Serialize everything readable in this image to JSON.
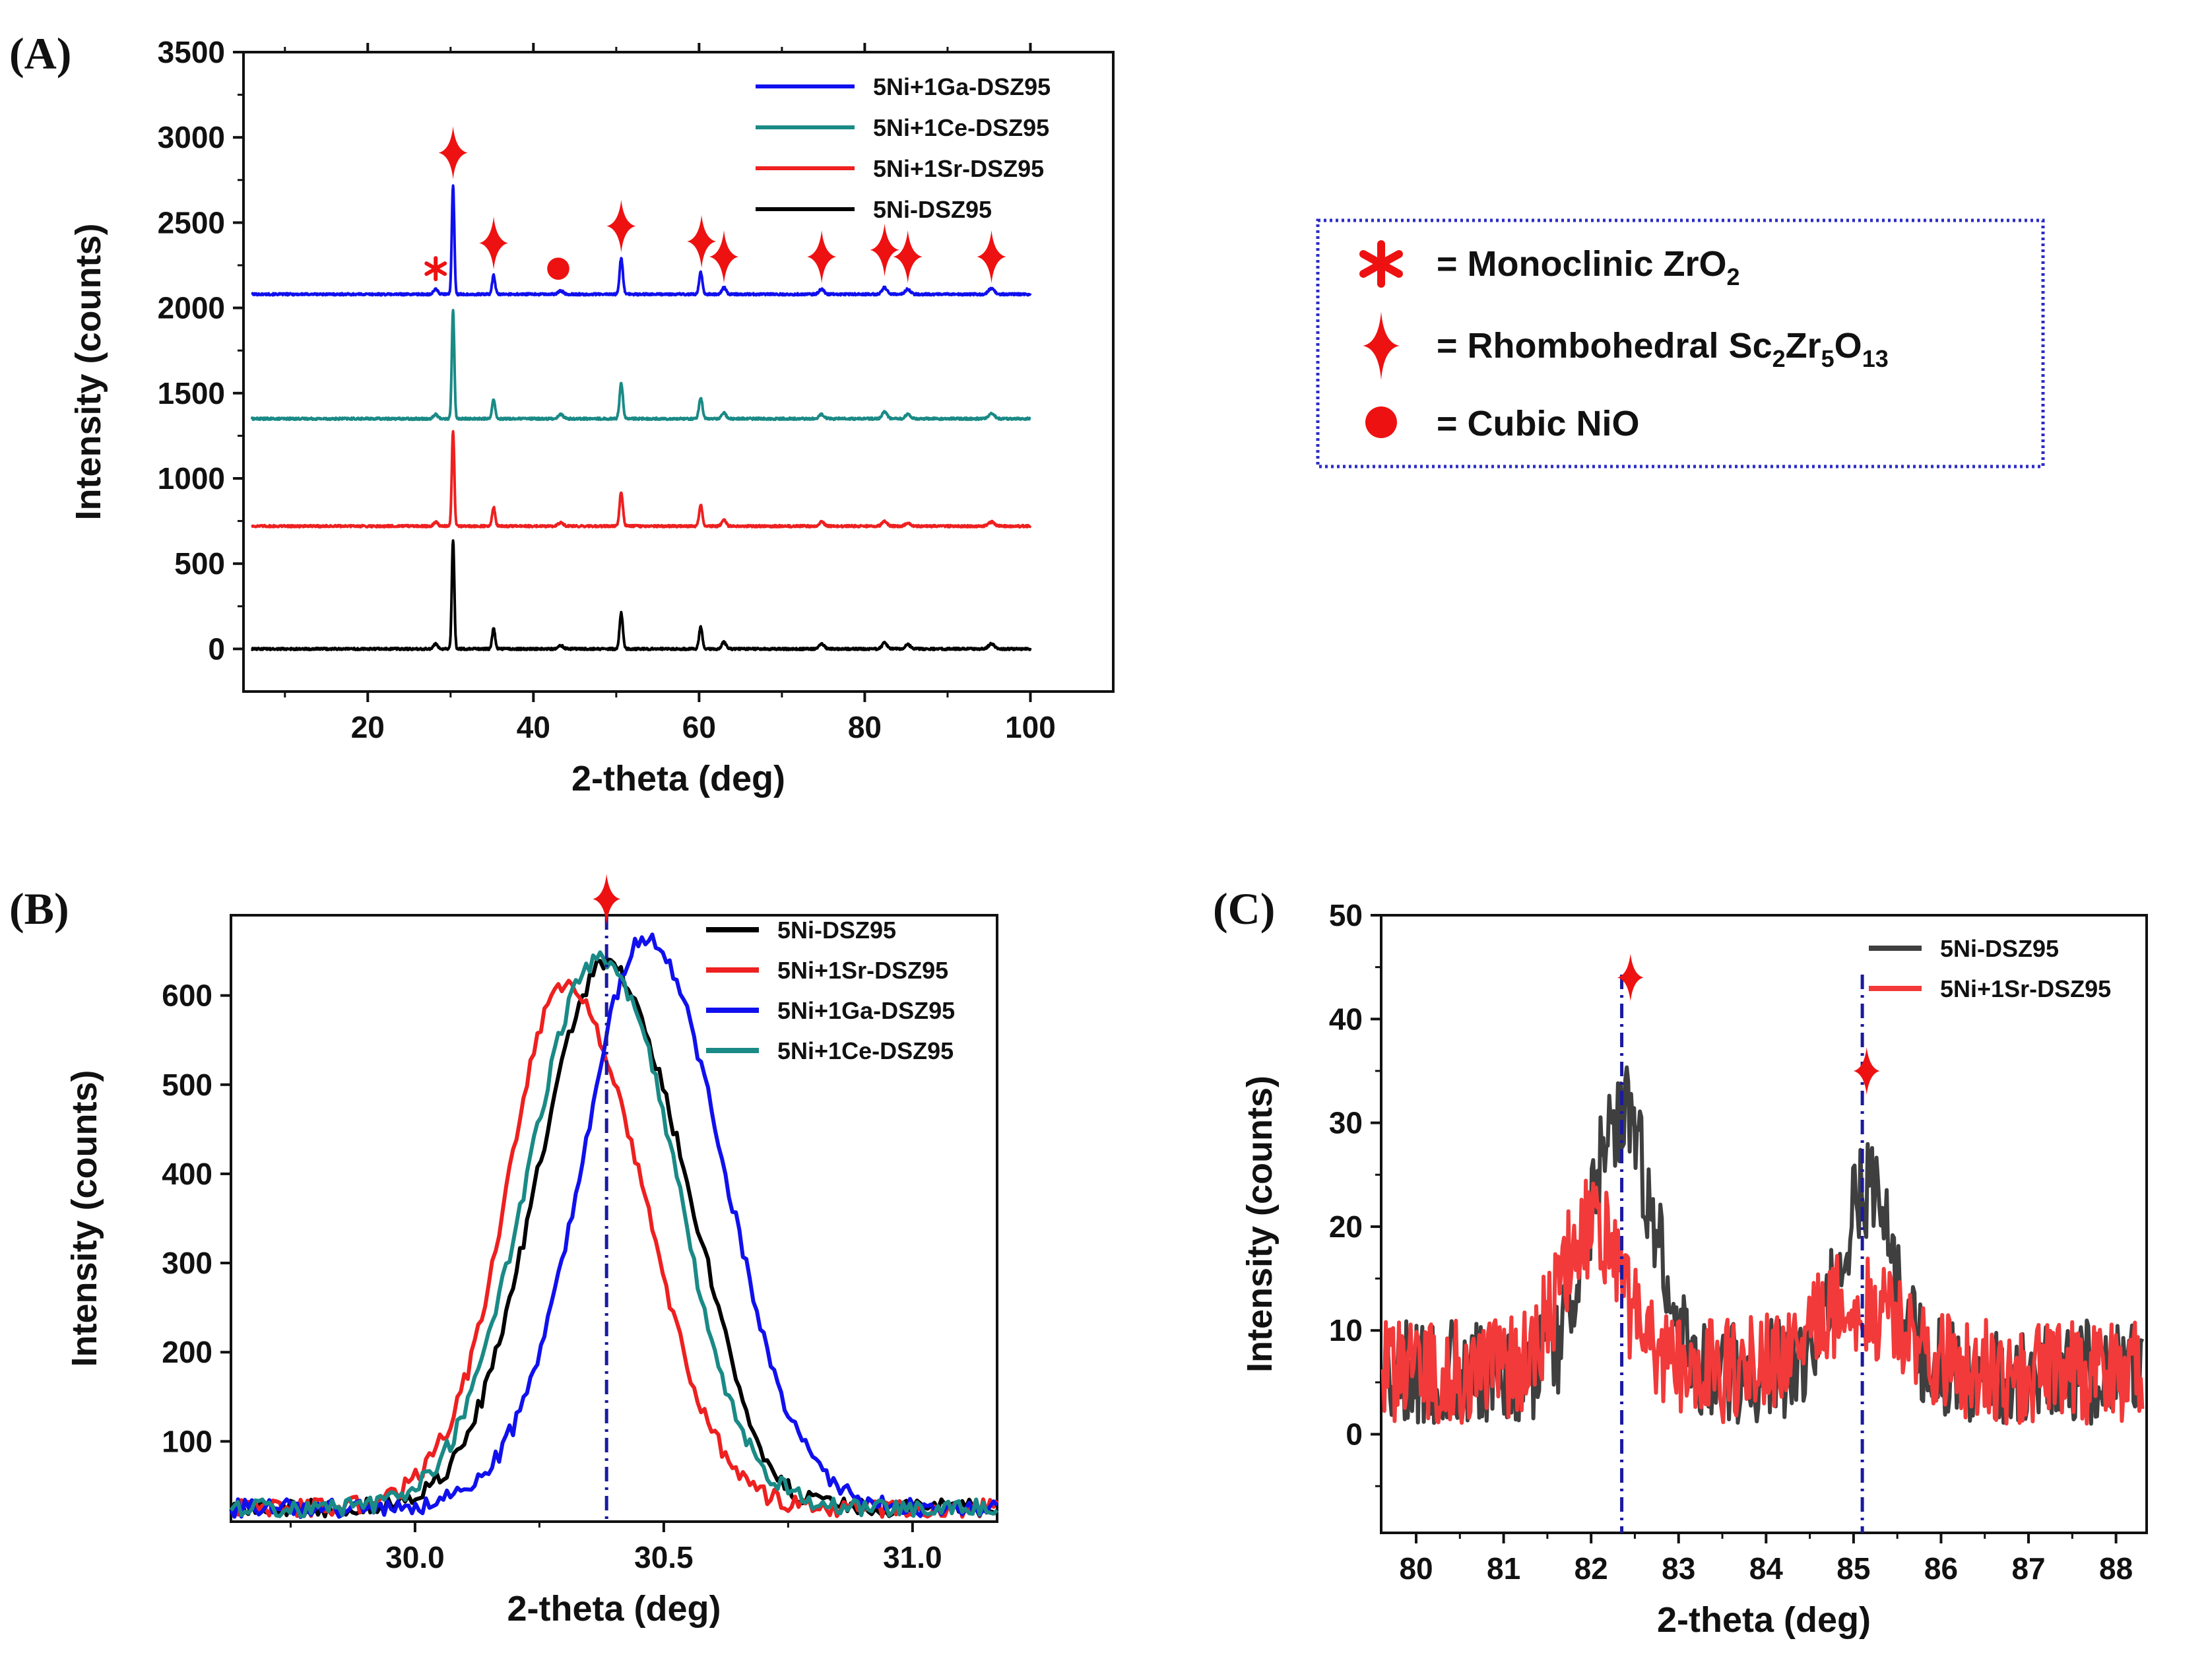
{
  "figure_labels": [
    "(A)",
    "(B)",
    "(C)"
  ],
  "colors": {
    "ga": "#1010ee",
    "ce": "#1a8a86",
    "sr": "#ee2020",
    "ni": "#000000",
    "ni_c": "#3f3f3f",
    "sr_c": "#f23a3a",
    "marker": "#ee1111",
    "guide": "#1a1aa0",
    "key_border": "#2c2cc8"
  },
  "key": {
    "monoclinic": {
      "prefix": "= Monoclinic ZrO",
      "sub": "2"
    },
    "rhombohedral": {
      "prefix": "= Rhombohedral Sc",
      "sub1": "2",
      "mid1": "Zr",
      "sub2": "5",
      "mid2": "O",
      "sub3": "13"
    },
    "cubic": {
      "prefix": "= Cubic NiO"
    }
  },
  "chart_data": [
    {
      "id": "A",
      "type": "line",
      "xlabel": "2-theta (deg)",
      "ylabel": "Intensity (counts)",
      "xlim": [
        5,
        110
      ],
      "ylim": [
        -250,
        3500
      ],
      "xticks": [
        20,
        40,
        60,
        80,
        100
      ],
      "yticks": [
        0,
        500,
        1000,
        1500,
        2000,
        2500,
        3000,
        3500
      ],
      "xstart": 6,
      "xend": 100,
      "series": [
        {
          "name": "5Ni+1Ga-DSZ95",
          "color": "#1010ee",
          "baseline": 2080,
          "noise": 6,
          "peaks": [
            [
              28.2,
              30,
              0.25
            ],
            [
              30.3,
              640,
              0.15
            ],
            [
              35.2,
              110,
              0.18
            ],
            [
              43.3,
              20,
              0.3
            ],
            [
              50.6,
              210,
              0.2
            ],
            [
              60.2,
              130,
              0.2
            ],
            [
              63.0,
              40,
              0.25
            ],
            [
              74.8,
              30,
              0.3
            ],
            [
              82.4,
              40,
              0.3
            ],
            [
              85.2,
              30,
              0.3
            ],
            [
              95.3,
              35,
              0.35
            ]
          ]
        },
        {
          "name": "5Ni+1Ce-DSZ95",
          "color": "#1a8a86",
          "baseline": 1350,
          "noise": 6,
          "peaks": [
            [
              28.2,
              25,
              0.25
            ],
            [
              30.3,
              640,
              0.15
            ],
            [
              35.2,
              115,
              0.18
            ],
            [
              43.3,
              25,
              0.3
            ],
            [
              50.6,
              210,
              0.2
            ],
            [
              60.2,
              125,
              0.2
            ],
            [
              63.0,
              35,
              0.25
            ],
            [
              74.8,
              25,
              0.3
            ],
            [
              82.4,
              40,
              0.3
            ],
            [
              85.2,
              25,
              0.3
            ],
            [
              95.3,
              30,
              0.35
            ]
          ]
        },
        {
          "name": "5Ni+1Sr-DSZ95",
          "color": "#ee2020",
          "baseline": 720,
          "noise": 6,
          "peaks": [
            [
              28.2,
              25,
              0.25
            ],
            [
              30.3,
              560,
              0.15
            ],
            [
              35.2,
              110,
              0.18
            ],
            [
              43.3,
              20,
              0.3
            ],
            [
              50.6,
              200,
              0.2
            ],
            [
              60.2,
              125,
              0.2
            ],
            [
              63.0,
              35,
              0.25
            ],
            [
              74.8,
              25,
              0.3
            ],
            [
              82.4,
              30,
              0.3
            ],
            [
              85.2,
              20,
              0.3
            ],
            [
              95.3,
              25,
              0.35
            ]
          ]
        },
        {
          "name": "5Ni-DSZ95",
          "color": "#000000",
          "baseline": 0,
          "noise": 6,
          "peaks": [
            [
              28.2,
              30,
              0.25
            ],
            [
              30.3,
              640,
              0.15
            ],
            [
              35.2,
              120,
              0.18
            ],
            [
              43.3,
              20,
              0.3
            ],
            [
              50.6,
              210,
              0.2
            ],
            [
              60.2,
              130,
              0.2
            ],
            [
              63.0,
              40,
              0.25
            ],
            [
              74.8,
              30,
              0.3
            ],
            [
              82.4,
              35,
              0.3
            ],
            [
              85.2,
              25,
              0.3
            ],
            [
              95.3,
              30,
              0.35
            ]
          ]
        }
      ],
      "legend": [
        "5Ni+1Ga-DSZ95",
        "5Ni+1Ce-DSZ95",
        "5Ni+1Sr-DSZ95",
        "5Ni-DSZ95"
      ],
      "markers": [
        {
          "type": "asterisk",
          "x": 28.2,
          "y": 2230
        },
        {
          "type": "star",
          "x": 30.3,
          "y": 2910
        },
        {
          "type": "star",
          "x": 35.2,
          "y": 2380
        },
        {
          "type": "dot",
          "x": 43.0,
          "y": 2230
        },
        {
          "type": "star",
          "x": 50.6,
          "y": 2480
        },
        {
          "type": "star",
          "x": 60.3,
          "y": 2390
        },
        {
          "type": "star",
          "x": 63.0,
          "y": 2300
        },
        {
          "type": "star",
          "x": 74.8,
          "y": 2300
        },
        {
          "type": "star",
          "x": 82.4,
          "y": 2340
        },
        {
          "type": "star",
          "x": 85.2,
          "y": 2300
        },
        {
          "type": "star",
          "x": 95.3,
          "y": 2300
        }
      ]
    },
    {
      "id": "B",
      "type": "line",
      "xlabel": "2-theta (deg)",
      "ylabel": "Intensity (counts)",
      "xlim": [
        29.63,
        31.17
      ],
      "ylim": [
        10,
        690
      ],
      "xticks": [
        30.0,
        30.5,
        31.0
      ],
      "xtick_labels": [
        "30.0",
        "30.5",
        "31.0"
      ],
      "yticks": [
        100,
        200,
        300,
        400,
        500,
        600
      ],
      "series": [
        {
          "name": "5Ni-DSZ95",
          "color": "#000000",
          "base": 25,
          "peaks": [
            [
              30.385,
              610,
              0.14
            ]
          ],
          "shoulder": [
            30.58,
            60,
            0.07
          ],
          "noise": 10
        },
        {
          "name": "5Ni+1Sr-DSZ95",
          "color": "#ee2020",
          "base": 25,
          "peaks": [
            [
              30.33,
              540,
              0.14
            ]
          ],
          "shoulder": [
            30.25,
            80,
            0.06
          ],
          "noise": 10
        },
        {
          "name": "5Ni+1Ga-DSZ95",
          "color": "#1010ee",
          "base": 25,
          "peaks": [
            [
              30.48,
              615,
              0.145
            ]
          ],
          "shoulder": [
            30.42,
            40,
            0.05
          ],
          "noise": 10
        },
        {
          "name": "5Ni+1Ce-DSZ95",
          "color": "#1a8a86",
          "base": 25,
          "peaks": [
            [
              30.37,
              615,
              0.145
            ]
          ],
          "shoulder": [
            30.5,
            30,
            0.05
          ],
          "noise": 10
        }
      ],
      "legend": [
        "5Ni-DSZ95",
        "5Ni+1Sr-DSZ95",
        "5Ni+1Ga-DSZ95",
        "5Ni+1Ce-DSZ95"
      ],
      "guide_x": [
        30.385
      ],
      "markers": [
        {
          "type": "star",
          "x": 30.385,
          "y": 680
        }
      ]
    },
    {
      "id": "C",
      "type": "line",
      "xlabel": "2-theta (deg)",
      "ylabel": "Intensity (counts)",
      "xlim": [
        79.6,
        88.35
      ],
      "ylim": [
        -9.5,
        50
      ],
      "xticks": [
        80,
        81,
        82,
        83,
        84,
        85,
        86,
        87,
        88
      ],
      "yticks": [
        0,
        10,
        20,
        30,
        40,
        50
      ],
      "series": [
        {
          "name": "5Ni-DSZ95",
          "color": "#3f3f3f",
          "base": 6,
          "peaks": [
            [
              82.35,
              25,
              0.35
            ],
            [
              85.15,
              17,
              0.3
            ]
          ],
          "noise": 5
        },
        {
          "name": "5Ni+1Sr-DSZ95",
          "color": "#f23a3a",
          "base": 6,
          "peaks": [
            [
              82.0,
              14,
              0.35
            ],
            [
              85.0,
              7,
              0.5
            ]
          ],
          "noise": 5
        }
      ],
      "legend": [
        "5Ni-DSZ95",
        "5Ni+1Sr-DSZ95"
      ],
      "guide_x": [
        82.35,
        85.1
      ],
      "markers": [
        {
          "type": "star",
          "x": 82.45,
          "y": 44
        },
        {
          "type": "star",
          "x": 85.15,
          "y": 35
        }
      ]
    }
  ]
}
